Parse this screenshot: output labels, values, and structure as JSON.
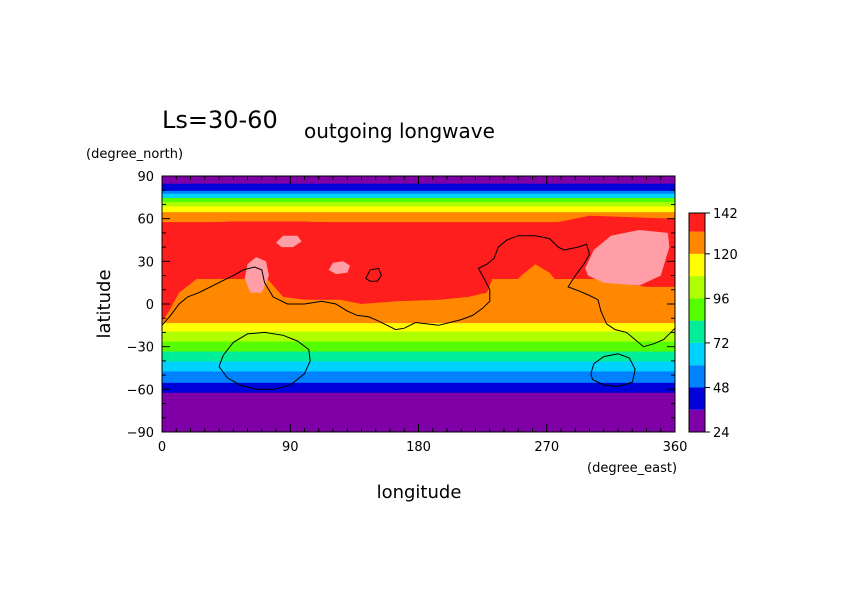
{
  "chart_data": {
    "type": "heatmap",
    "title": "Ls=30-60",
    "subtitle": "outgoing longwave",
    "xlabel": "longitude",
    "ylabel": "latitude",
    "x_unit": "(degree_east)",
    "y_unit": "(degree_north)",
    "xlim": [
      0,
      360
    ],
    "ylim": [
      -90,
      90
    ],
    "x_ticks": [
      0,
      90,
      180,
      270,
      360
    ],
    "x_tick_labels": [
      "0",
      "90",
      "180",
      "270",
      "360"
    ],
    "y_ticks": [
      90,
      60,
      30,
      0,
      -30,
      -60,
      -90
    ],
    "y_tick_labels": [
      "90",
      "60",
      "30",
      "0",
      "−30",
      "−60",
      "−90"
    ],
    "colorbar": {
      "levels": [
        24,
        36,
        48,
        60,
        72,
        84,
        96,
        108,
        120,
        132,
        142
      ],
      "tick_labels": [
        "142",
        "120",
        "96",
        "72",
        "48",
        "24"
      ],
      "tick_values": [
        142,
        120,
        96,
        72,
        48,
        24
      ],
      "colors": [
        "#7f00a6",
        "#0000d8",
        "#0082ff",
        "#00d2ff",
        "#00ee9a",
        "#55ff00",
        "#b0ff00",
        "#ffff00",
        "#ff8800",
        "#ff1e1e",
        "#ff9ea6"
      ]
    },
    "zonal_bands": [
      {
        "lat_from": -90,
        "lat_to": -62,
        "level_index": 0
      },
      {
        "lat_from": -62,
        "lat_to": -55,
        "level_index": 1
      },
      {
        "lat_from": -55,
        "lat_to": -47,
        "level_index": 2
      },
      {
        "lat_from": -47,
        "lat_to": -40,
        "level_index": 3
      },
      {
        "lat_from": -40,
        "lat_to": -33,
        "level_index": 4
      },
      {
        "lat_from": -33,
        "lat_to": -26,
        "level_index": 5
      },
      {
        "lat_from": -26,
        "lat_to": -19,
        "level_index": 6
      },
      {
        "lat_from": -19,
        "lat_to": -13,
        "level_index": 7
      },
      {
        "lat_from": -13,
        "lat_to": 18,
        "level_index": 8
      },
      {
        "lat_from": 18,
        "lat_to": 58,
        "level_index": 9
      },
      {
        "lat_from": 58,
        "lat_to": 65,
        "level_index": 8
      },
      {
        "lat_from": 65,
        "lat_to": 69,
        "level_index": 7
      },
      {
        "lat_from": 69,
        "lat_to": 72,
        "level_index": 6
      },
      {
        "lat_from": 72,
        "lat_to": 75,
        "level_index": 5
      },
      {
        "lat_from": 75,
        "lat_to": 78,
        "level_index": 3
      },
      {
        "lat_from": 78,
        "lat_to": 80,
        "level_index": 2
      },
      {
        "lat_from": 80,
        "lat_to": 85,
        "level_index": 1
      },
      {
        "lat_from": 85,
        "lat_to": 90,
        "level_index": 0
      }
    ],
    "regions": [
      {
        "level_index": 9,
        "points": [
          [
            0,
            -12
          ],
          [
            5,
            -5
          ],
          [
            12,
            8
          ],
          [
            25,
            18
          ],
          [
            45,
            25
          ],
          [
            60,
            27
          ],
          [
            72,
            20
          ],
          [
            85,
            5
          ],
          [
            100,
            3
          ],
          [
            125,
            3
          ],
          [
            140,
            0
          ],
          [
            165,
            2
          ],
          [
            195,
            3
          ],
          [
            215,
            5
          ],
          [
            228,
            8
          ],
          [
            235,
            25
          ],
          [
            240,
            38
          ],
          [
            248,
            48
          ],
          [
            258,
            50
          ],
          [
            268,
            45
          ],
          [
            280,
            35
          ],
          [
            295,
            25
          ],
          [
            305,
            20
          ],
          [
            320,
            15
          ],
          [
            340,
            12
          ],
          [
            360,
            12
          ],
          [
            360,
            60
          ],
          [
            300,
            62
          ],
          [
            270,
            56
          ],
          [
            240,
            47
          ],
          [
            200,
            55
          ],
          [
            150,
            56
          ],
          [
            100,
            58
          ],
          [
            50,
            58
          ],
          [
            0,
            56
          ]
        ]
      },
      {
        "level_index": 8,
        "points": [
          [
            245,
            12
          ],
          [
            252,
            20
          ],
          [
            262,
            28
          ],
          [
            272,
            22
          ],
          [
            280,
            12
          ],
          [
            272,
            5
          ],
          [
            258,
            5
          ]
        ]
      },
      {
        "level_index": 10,
        "points": [
          [
            80,
            43
          ],
          [
            85,
            48
          ],
          [
            95,
            48
          ],
          [
            98,
            44
          ],
          [
            92,
            40
          ],
          [
            84,
            40
          ]
        ]
      },
      {
        "level_index": 10,
        "points": [
          [
            58,
            18
          ],
          [
            60,
            28
          ],
          [
            66,
            33
          ],
          [
            73,
            30
          ],
          [
            75,
            20
          ],
          [
            70,
            8
          ],
          [
            62,
            8
          ]
        ]
      },
      {
        "level_index": 10,
        "points": [
          [
            117,
            24
          ],
          [
            120,
            29
          ],
          [
            127,
            30
          ],
          [
            132,
            27
          ],
          [
            130,
            22
          ],
          [
            122,
            21
          ]
        ]
      },
      {
        "level_index": 10,
        "points": [
          [
            297,
            25
          ],
          [
            303,
            38
          ],
          [
            315,
            48
          ],
          [
            335,
            52
          ],
          [
            355,
            50
          ],
          [
            356,
            40
          ],
          [
            350,
            20
          ],
          [
            335,
            13
          ],
          [
            310,
            15
          ],
          [
            299,
            20
          ]
        ]
      }
    ],
    "contour_lines": [
      {
        "points": [
          [
            0,
            -15
          ],
          [
            6,
            -8
          ],
          [
            12,
            0
          ],
          [
            18,
            5
          ],
          [
            26,
            8
          ],
          [
            34,
            12
          ],
          [
            42,
            16
          ],
          [
            50,
            20
          ],
          [
            57,
            24
          ],
          [
            65,
            26
          ],
          [
            70,
            24
          ],
          [
            72,
            15
          ],
          [
            78,
            5
          ],
          [
            88,
            0
          ],
          [
            100,
            0
          ],
          [
            112,
            2
          ],
          [
            122,
            0
          ],
          [
            130,
            -5
          ],
          [
            137,
            -8
          ],
          [
            145,
            -9
          ],
          [
            152,
            -12
          ],
          [
            158,
            -15
          ],
          [
            164,
            -18
          ],
          [
            170,
            -17
          ],
          [
            178,
            -13
          ],
          [
            186,
            -14
          ],
          [
            194,
            -15
          ],
          [
            202,
            -13
          ],
          [
            210,
            -11
          ],
          [
            218,
            -8
          ],
          [
            225,
            -3
          ],
          [
            230,
            2
          ],
          [
            230,
            10
          ],
          [
            226,
            18
          ],
          [
            222,
            25
          ],
          [
            228,
            28
          ],
          [
            233,
            32
          ],
          [
            236,
            40
          ],
          [
            242,
            45
          ],
          [
            250,
            48
          ],
          [
            262,
            48
          ],
          [
            272,
            46
          ],
          [
            278,
            40
          ],
          [
            282,
            38
          ],
          [
            292,
            40
          ],
          [
            298,
            42
          ],
          [
            300,
            35
          ],
          [
            296,
            28
          ],
          [
            290,
            20
          ],
          [
            285,
            12
          ],
          [
            293,
            9
          ],
          [
            300,
            6
          ],
          [
            306,
            3
          ],
          [
            308,
            -5
          ],
          [
            312,
            -14
          ],
          [
            318,
            -18
          ],
          [
            326,
            -20
          ],
          [
            332,
            -25
          ],
          [
            338,
            -30
          ],
          [
            345,
            -28
          ],
          [
            352,
            -25
          ],
          [
            360,
            -17
          ]
        ]
      },
      {
        "points": [
          [
            40,
            -44
          ],
          [
            43,
            -36
          ],
          [
            50,
            -27
          ],
          [
            60,
            -21
          ],
          [
            72,
            -20
          ],
          [
            85,
            -22
          ],
          [
            95,
            -26
          ],
          [
            103,
            -32
          ],
          [
            104,
            -40
          ],
          [
            100,
            -49
          ],
          [
            90,
            -57
          ],
          [
            78,
            -60
          ],
          [
            66,
            -60
          ],
          [
            55,
            -57
          ],
          [
            46,
            -52
          ],
          [
            40,
            -44
          ]
        ]
      },
      {
        "points": [
          [
            301,
            -49
          ],
          [
            303,
            -42
          ],
          [
            310,
            -37
          ],
          [
            320,
            -35
          ],
          [
            328,
            -38
          ],
          [
            332,
            -46
          ],
          [
            330,
            -55
          ],
          [
            320,
            -58
          ],
          [
            310,
            -57
          ],
          [
            302,
            -53
          ],
          [
            301,
            -49
          ]
        ]
      },
      {
        "points": [
          [
            143,
            18
          ],
          [
            146,
            24
          ],
          [
            152,
            25
          ],
          [
            154,
            20
          ],
          [
            151,
            16
          ],
          [
            146,
            16
          ],
          [
            143,
            18
          ]
        ]
      }
    ]
  }
}
